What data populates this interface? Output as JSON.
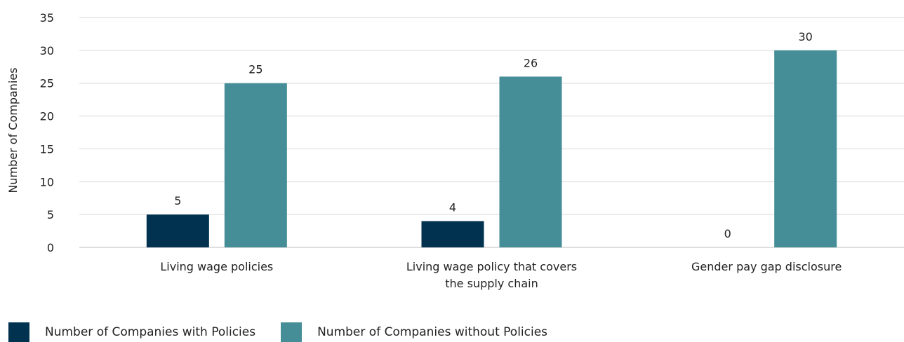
{
  "chart_data": {
    "type": "bar",
    "title": "",
    "xlabel": "",
    "ylabel": "Number of Companies",
    "ylim": [
      0,
      35
    ],
    "yticks": [
      0,
      5,
      10,
      15,
      20,
      25,
      30,
      35
    ],
    "grid": true,
    "legend_position": "bottom-left",
    "categories": [
      [
        "Living wage policies"
      ],
      [
        "Living wage policy that covers",
        "the supply chain"
      ],
      [
        "Gender pay gap disclosure"
      ]
    ],
    "series": [
      {
        "name": "Number of Companies with Policies",
        "color": "#01324f",
        "values": [
          5,
          4,
          0
        ]
      },
      {
        "name": "Number of Companies without Policies",
        "color": "#468e97",
        "values": [
          25,
          26,
          30
        ]
      }
    ]
  }
}
